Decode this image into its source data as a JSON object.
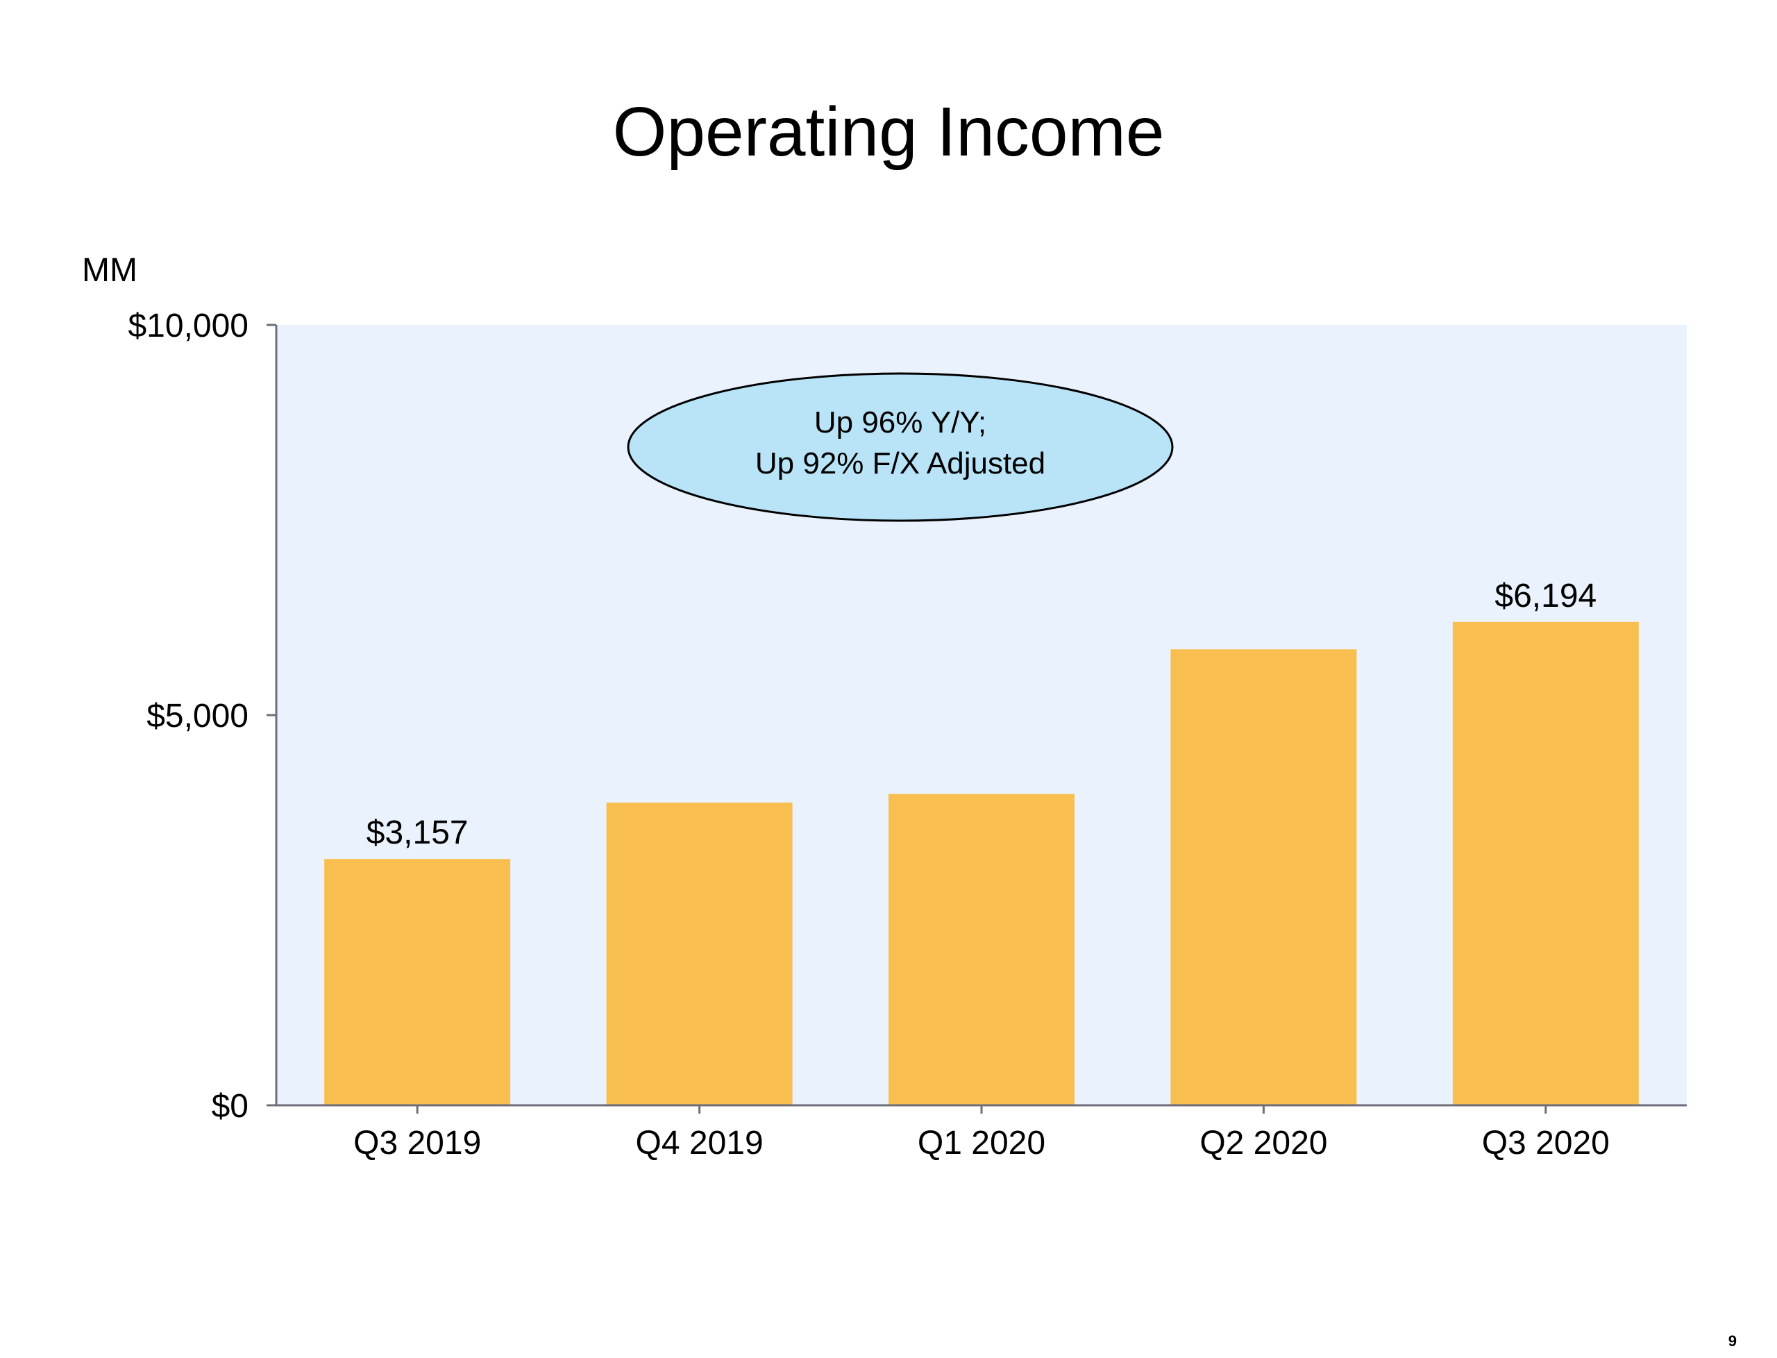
{
  "title": "Operating Income",
  "page_number": "9",
  "callout": {
    "line1": "Up 96% Y/Y;",
    "line2": "Up 92% F/X Adjusted"
  },
  "colors": {
    "bar": "#F8BF50",
    "plot_background": "#EAF2FD",
    "callout_fill": "#B9E4F8",
    "axis": "#6E6E7A"
  },
  "chart_data": {
    "type": "bar",
    "title": "Operating Income",
    "units_label": "MM",
    "categories": [
      "Q3 2019",
      "Q4 2019",
      "Q1 2020",
      "Q2 2020",
      "Q3 2020"
    ],
    "values": [
      3157,
      3879,
      3989,
      5843,
      6194
    ],
    "data_labels": [
      "$3,157",
      "",
      "",
      "",
      "$6,194"
    ],
    "ylim": [
      0,
      10000
    ],
    "yticks": [
      {
        "value": 0,
        "label": "$0"
      },
      {
        "value": 5000,
        "label": "$5,000"
      },
      {
        "value": 10000,
        "label": "$10,000"
      }
    ],
    "grid": false,
    "legend": "none"
  }
}
